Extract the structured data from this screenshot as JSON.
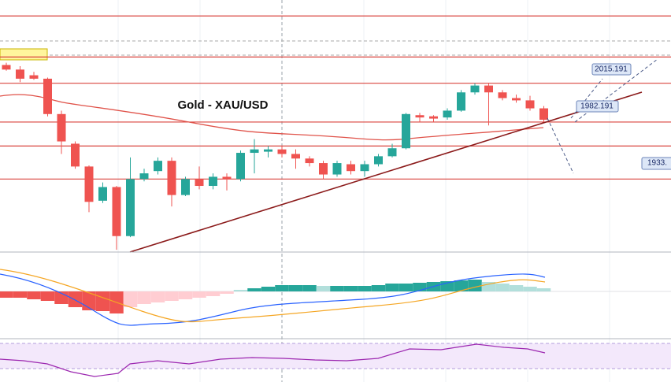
{
  "chart_data": {
    "type": "candlestick",
    "title": "Gold - XAU/USD",
    "open": [
      2019,
      2015,
      2010,
      2007,
      1976,
      1950,
      1930,
      1900,
      1912,
      1869,
      1919,
      1926,
      1935,
      1905,
      1919,
      1913,
      1921,
      1919,
      1942,
      1943,
      1945,
      1941,
      1937,
      1933,
      1923,
      1932,
      1926,
      1932,
      1939,
      1946,
      1975,
      1974,
      1973,
      1979,
      1995,
      2001,
      1995,
      1990,
      1988,
      1981
    ],
    "high": [
      2021,
      2018,
      2013,
      2008,
      1979,
      1952,
      1931,
      1916,
      1913,
      1938,
      1928,
      1938,
      1938,
      1921,
      1930,
      1924,
      1924,
      1944,
      1954,
      1948,
      1948,
      1945,
      1939,
      1935,
      1935,
      1935,
      1935,
      1941,
      1950,
      1977,
      1977,
      1975,
      1981,
      1997,
      2003,
      2003,
      1997,
      1993,
      1992,
      1983
    ],
    "low": [
      2014,
      2004,
      2006,
      1974,
      1941,
      1928,
      1890,
      1898,
      1857,
      1868,
      1917,
      1923,
      1895,
      1904,
      1910,
      1910,
      1909,
      1917,
      1924,
      1938,
      1938,
      1928,
      1930,
      1919,
      1921,
      1923,
      1921,
      1930,
      1938,
      1945,
      1969,
      1969,
      1971,
      1978,
      1993,
      1966,
      1988,
      1986,
      1979,
      1969
    ],
    "close": [
      2015,
      2007,
      2007,
      1976,
      1952,
      1930,
      1899,
      1912,
      1869,
      1919,
      1924,
      1935,
      1905,
      1919,
      1913,
      1921,
      1919,
      1942,
      1945,
      1945,
      1941,
      1937,
      1933,
      1923,
      1933,
      1926,
      1932,
      1939,
      1946,
      1976,
      1973,
      1972,
      1979,
      1995,
      2001,
      1995,
      1990,
      1988,
      1981,
      1971
    ],
    "up_color": "#26a69a",
    "down_color": "#ef5350",
    "ylim": [
      1855,
      2076
    ],
    "levels": [
      2062,
      2026,
      2003,
      1969,
      1948,
      1919
    ],
    "level_color": "#d9453f",
    "price_labels": [
      "2015.191",
      "1982.191",
      "1933."
    ],
    "macd_histogram": {
      "values": [
        -8,
        -8,
        -10,
        -12,
        -16,
        -20,
        -24,
        -25,
        -28,
        -20,
        -16,
        -14,
        -12,
        -10,
        -8,
        -6,
        -3,
        2,
        4,
        6,
        8,
        8,
        8,
        7,
        7,
        7,
        7,
        8,
        10,
        10,
        11,
        12,
        13,
        14,
        15,
        12,
        10,
        8,
        6,
        4
      ],
      "ylim": [
        -48,
        48
      ]
    }
  }
}
